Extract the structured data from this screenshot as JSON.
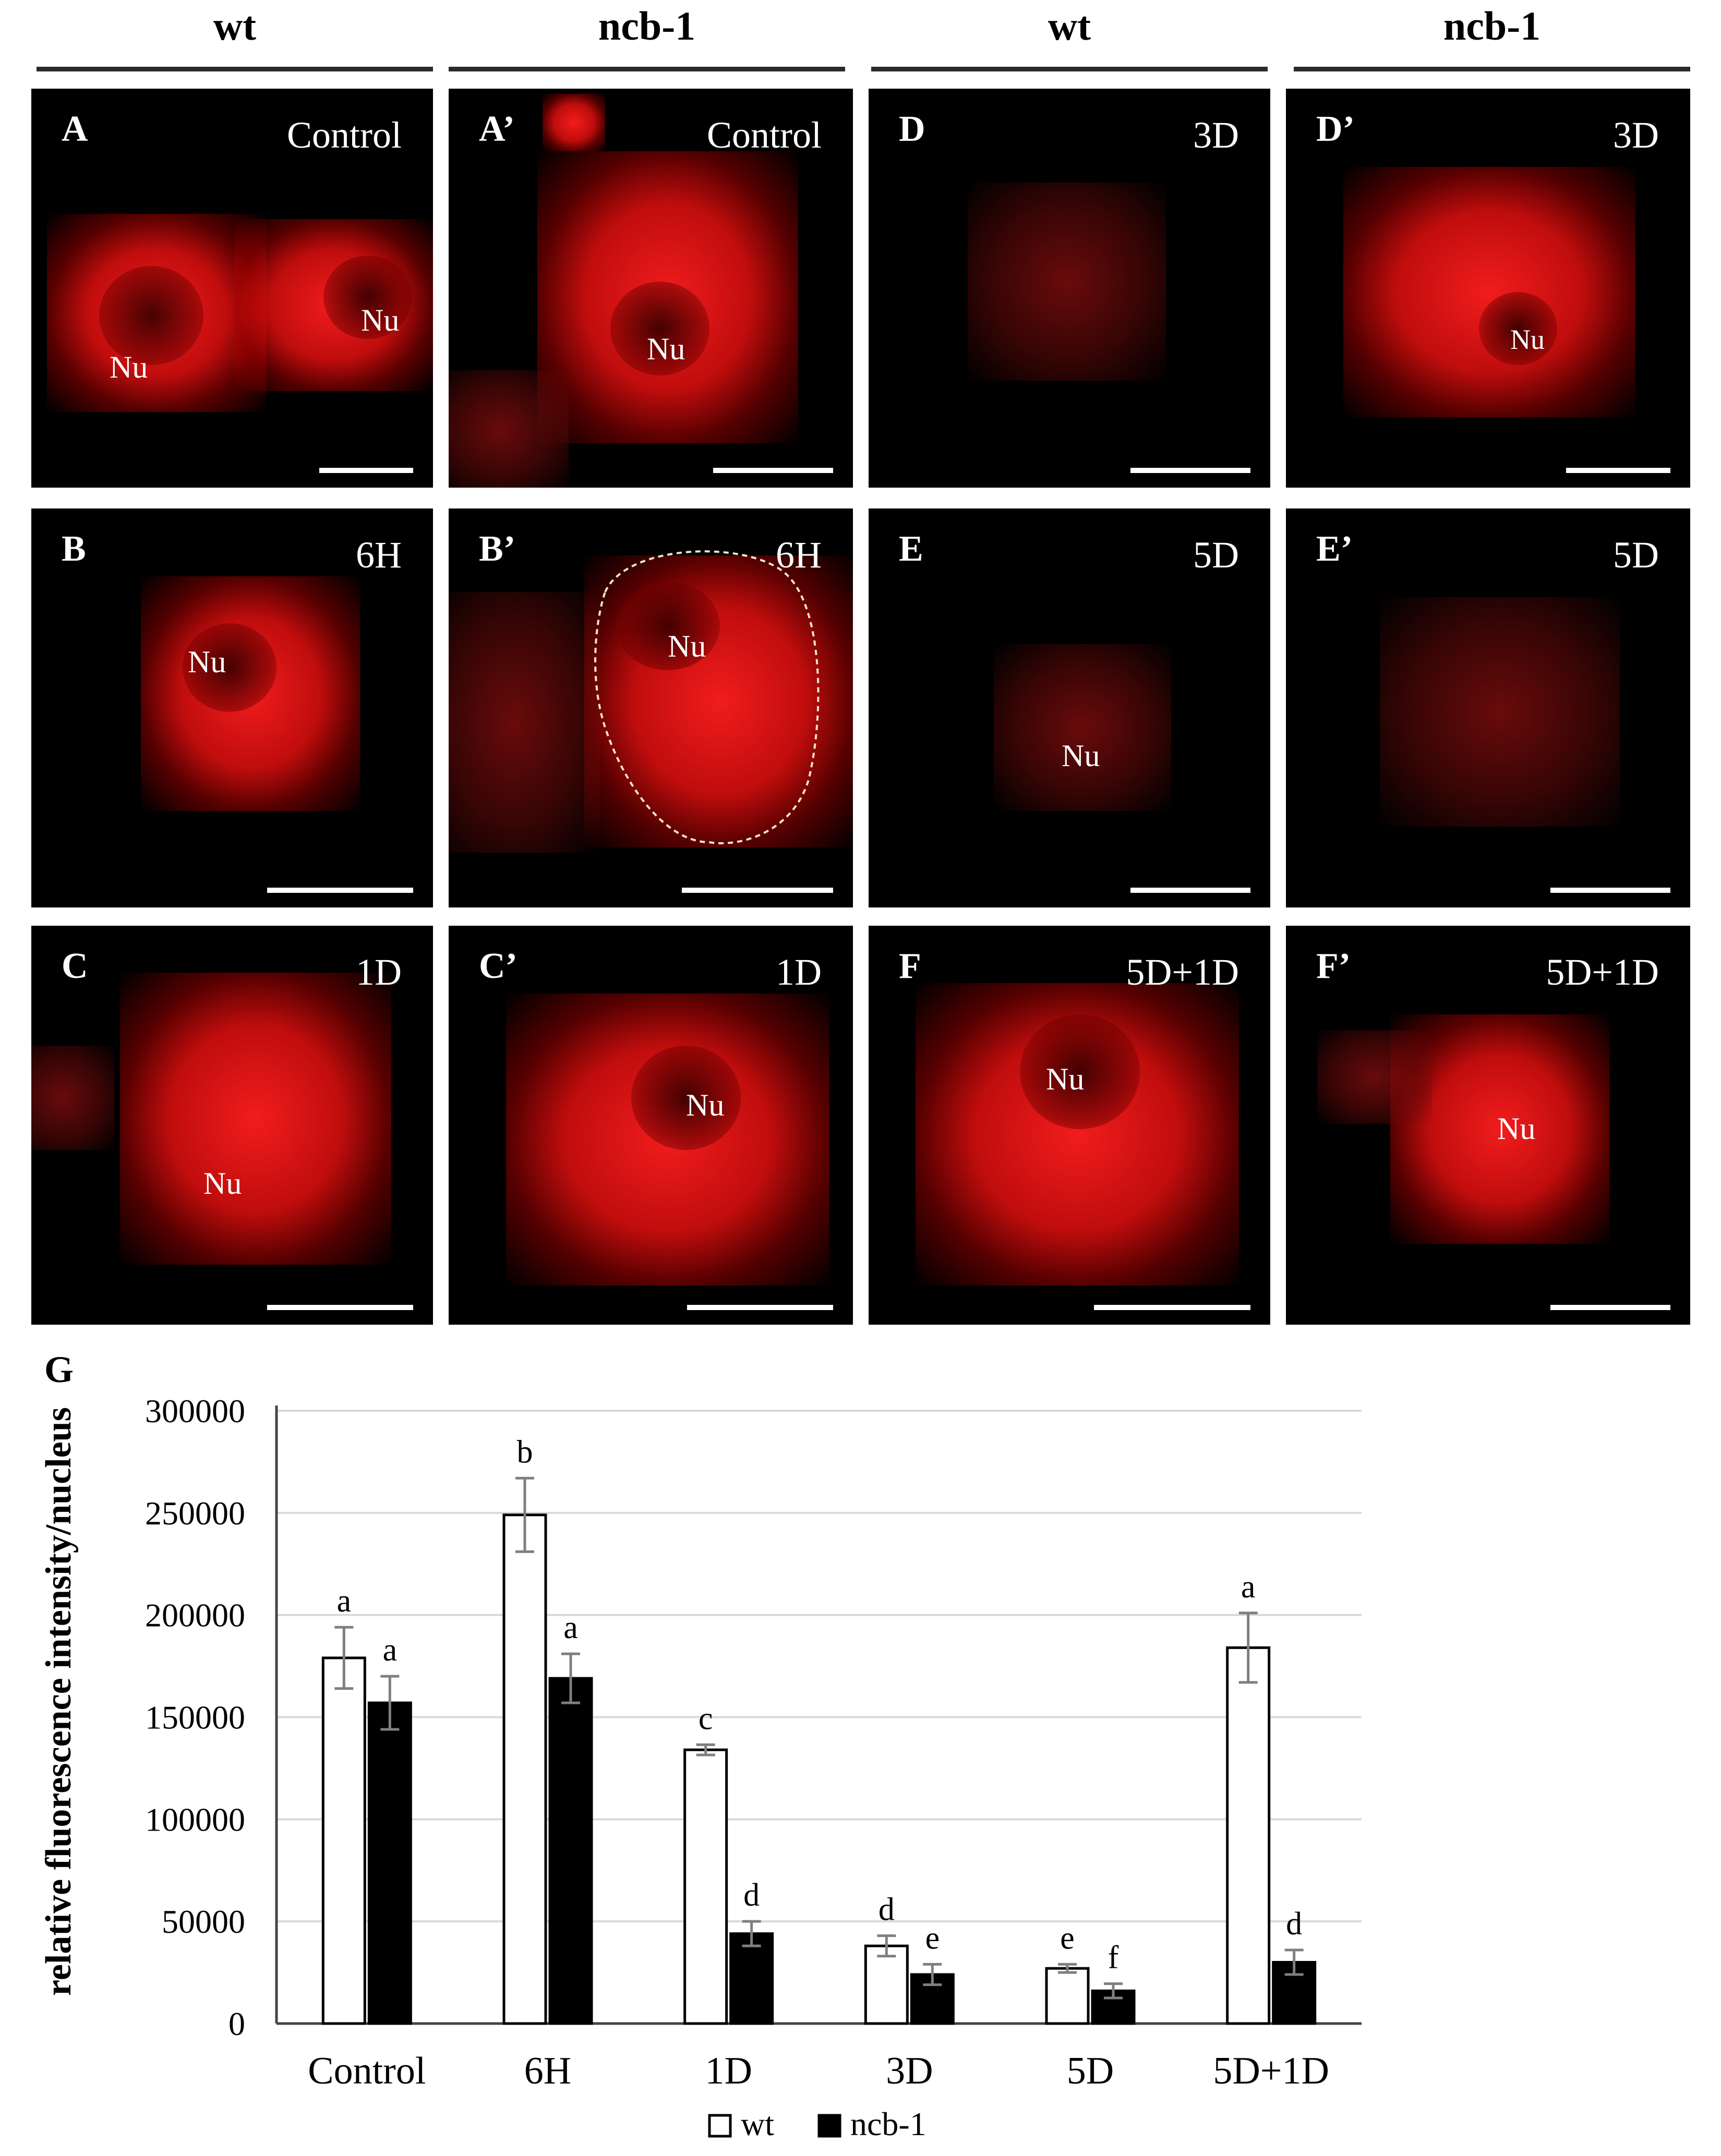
{
  "column_headers": [
    {
      "label": "wt"
    },
    {
      "label": "ncb-1"
    },
    {
      "label": "wt"
    },
    {
      "label": "ncb-1"
    }
  ],
  "panels": [
    {
      "id": "A",
      "letter": "A",
      "condition": "Control",
      "nu": [
        "Nu",
        "Nu"
      ]
    },
    {
      "id": "A2",
      "letter": "A’",
      "condition": "Control",
      "nu": [
        "Nu"
      ]
    },
    {
      "id": "D",
      "letter": "D",
      "condition": "3D",
      "nu": []
    },
    {
      "id": "D2",
      "letter": "D’",
      "condition": "3D",
      "nu": [
        "Nu"
      ]
    },
    {
      "id": "B",
      "letter": "B",
      "condition": "6H",
      "nu": [
        "Nu"
      ]
    },
    {
      "id": "B2",
      "letter": "B’",
      "condition": "6H",
      "nu": [
        "Nu"
      ]
    },
    {
      "id": "E",
      "letter": "E",
      "condition": "5D",
      "nu": [
        "Nu"
      ]
    },
    {
      "id": "E2",
      "letter": "E’",
      "condition": "5D",
      "nu": []
    },
    {
      "id": "C",
      "letter": "C",
      "condition": "1D",
      "nu": [
        "Nu"
      ]
    },
    {
      "id": "C2",
      "letter": "C’",
      "condition": "1D",
      "nu": [
        "Nu"
      ]
    },
    {
      "id": "F",
      "letter": "F",
      "condition": "5D+1D",
      "nu": [
        "Nu"
      ]
    },
    {
      "id": "F2",
      "letter": "F’",
      "condition": "5D+1D",
      "nu": [
        "Nu"
      ]
    }
  ],
  "chart_data": {
    "type": "bar",
    "panel_letter": "G",
    "title": "",
    "xlabel": "",
    "ylabel": "relative fluorescence intensity/nucleus",
    "ylim": [
      0,
      300000
    ],
    "yticks": [
      0,
      50000,
      100000,
      150000,
      200000,
      250000,
      300000
    ],
    "grid": true,
    "legend_position": "bottom-center",
    "categories": [
      "Control",
      "6H",
      "1D",
      "3D",
      "5D",
      "5D+1D"
    ],
    "series": [
      {
        "name": "wt",
        "color": "#ffffff",
        "values": [
          179000,
          249000,
          134000,
          38000,
          27000,
          184000
        ],
        "errors": [
          15000,
          18000,
          2500,
          5000,
          2000,
          17000
        ],
        "letters": [
          "a",
          "b",
          "c",
          "d",
          "e",
          "a"
        ]
      },
      {
        "name": "ncb-1",
        "color": "#000000",
        "values": [
          157000,
          169000,
          44000,
          24000,
          16000,
          30000
        ],
        "errors": [
          13000,
          12000,
          6000,
          5000,
          3500,
          6000
        ],
        "letters": [
          "a",
          "a",
          "d",
          "e",
          "f",
          "d"
        ]
      }
    ]
  }
}
